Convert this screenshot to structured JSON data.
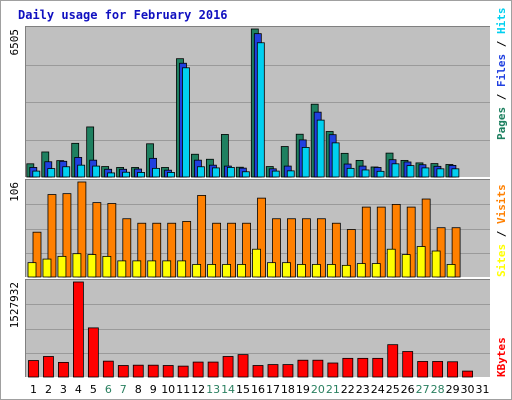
{
  "chart_data": {
    "title": "Daily usage for February 2016",
    "type": "bar",
    "days": [
      "1",
      "2",
      "3",
      "4",
      "5",
      "6",
      "7",
      "8",
      "9",
      "10",
      "11",
      "12",
      "13",
      "14",
      "15",
      "16",
      "17",
      "18",
      "19",
      "20",
      "21",
      "22",
      "23",
      "24",
      "25",
      "26",
      "27",
      "28",
      "29",
      "30",
      "31"
    ],
    "weekend_days": [
      "6",
      "7",
      "13",
      "14",
      "20",
      "21",
      "27",
      "28"
    ],
    "panels": [
      {
        "id": "hits-files-pages",
        "ymax_label": "6505",
        "ymax": 6505,
        "series": [
          {
            "name": "Pages",
            "color": "#1e8060",
            "values": [
              580,
              1100,
              720,
              1480,
              2200,
              460,
              420,
              420,
              1460,
              420,
              5200,
              1000,
              780,
              1870,
              430,
              6505,
              460,
              1340,
              1880,
              3200,
              2000,
              1040,
              730,
              440,
              1050,
              730,
              620,
              590,
              550,
              null,
              null
            ]
          },
          {
            "name": "Files",
            "color": "#2040e0",
            "values": [
              420,
              670,
              690,
              860,
              740,
              340,
              340,
              350,
              820,
              300,
              5000,
              740,
              520,
              480,
              390,
              6300,
              360,
              480,
              1630,
              2850,
              1860,
              570,
              480,
              420,
              760,
              660,
              540,
              470,
              510,
              null,
              null
            ]
          },
          {
            "name": "Hits",
            "color": "#00d0f0",
            "values": [
              260,
              370,
              450,
              520,
              480,
              180,
              210,
              200,
              380,
              200,
              4800,
              450,
              400,
              420,
              230,
              5900,
              260,
              270,
              1300,
              2500,
              1500,
              380,
              310,
              250,
              580,
              500,
              400,
              360,
              360,
              null,
              null
            ]
          }
        ],
        "legend_order": [
          "Pages",
          "Files",
          "Hits"
        ]
      },
      {
        "id": "visits-sites",
        "ymax_label": "106",
        "ymax": 106,
        "series": [
          {
            "name": "Visits",
            "color": "#ff8000",
            "values": [
              50,
              92,
              93,
              106,
              83,
              82,
              65,
              60,
              60,
              60,
              62,
              91,
              60,
              60,
              60,
              88,
              65,
              65,
              65,
              65,
              60,
              53,
              78,
              78,
              81,
              78,
              87,
              55,
              55,
              null,
              null
            ]
          },
          {
            "name": "Sites",
            "color": "#ffff00",
            "values": [
              16,
              20,
              23,
              26,
              25,
              23,
              18,
              18,
              18,
              18,
              18,
              14,
              14,
              14,
              14,
              31,
              16,
              16,
              14,
              14,
              14,
              13,
              15,
              15,
              31,
              25,
              34,
              29,
              14,
              null,
              null
            ]
          }
        ],
        "legend_order": [
          "Sites",
          "Visits"
        ]
      },
      {
        "id": "kbytes",
        "ymax_label": "1527932",
        "ymax": 1527932,
        "series": [
          {
            "name": "KBytes",
            "color": "#ff0000",
            "values": [
              265000,
              330000,
              235000,
              1527932,
              790000,
              255000,
              185000,
              190000,
              190000,
              185000,
              175000,
              240000,
              240000,
              330000,
              360000,
              185000,
              200000,
              200000,
              270000,
              270000,
              225000,
              300000,
              300000,
              300000,
              520000,
              410000,
              250000,
              250000,
              245000,
              95000,
              null
            ]
          }
        ],
        "legend_order": [
          "KBytes"
        ]
      }
    ],
    "legend_separator": " / ",
    "weekday_label_color": "#000000",
    "weekend_label_color": "#2a8060"
  }
}
